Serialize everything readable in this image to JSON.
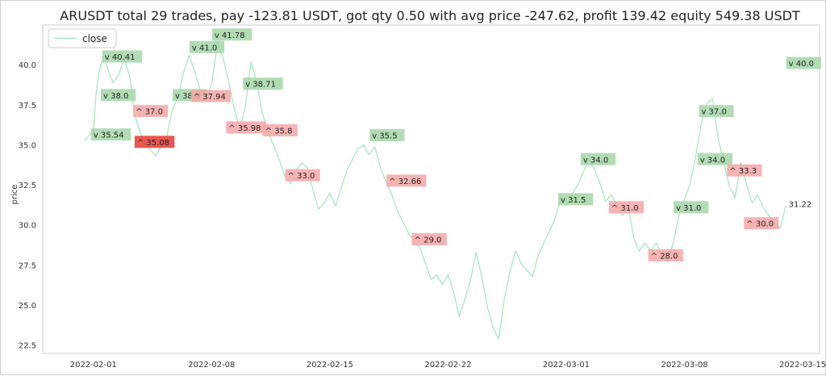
{
  "chart_data": {
    "type": "line",
    "title": "ARUSDT total 29 trades, pay -123.81 USDT, got qty 0.50 with avg price -247.62, profit 139.42 equity 549.38 USDT",
    "xlabel": "",
    "ylabel": "price",
    "ylim": [
      22,
      42.5
    ],
    "xlim": [
      "2022-01-29",
      "2022-03-16"
    ],
    "x_ticks": [
      "2022-02-01",
      "2022-02-08",
      "2022-02-15",
      "2022-02-22",
      "2022-03-01",
      "2022-03-08",
      "2022-03-15"
    ],
    "y_ticks": [
      22.5,
      25.0,
      27.5,
      30.0,
      32.5,
      35.0,
      37.5,
      40.0
    ],
    "grid": false,
    "legend": {
      "placement": "top-left",
      "entries": [
        "close"
      ]
    },
    "line_color": "#a8e6c2",
    "series": [
      {
        "name": "close",
        "points": [
          [
            "2022-01-31 12:00",
            35.3
          ],
          [
            "2022-02-01 00:00",
            35.9
          ],
          [
            "2022-02-01 04:00",
            38.3
          ],
          [
            "2022-02-01 08:00",
            39.6
          ],
          [
            "2022-02-01 14:00",
            40.5
          ],
          [
            "2022-02-01 20:00",
            39.8
          ],
          [
            "2022-02-02 04:00",
            38.9
          ],
          [
            "2022-02-02 12:00",
            39.4
          ],
          [
            "2022-02-02 20:00",
            40.4
          ],
          [
            "2022-02-03 04:00",
            39.2
          ],
          [
            "2022-02-03 10:00",
            37.0
          ],
          [
            "2022-02-03 16:00",
            36.1
          ],
          [
            "2022-02-04 00:00",
            35.2
          ],
          [
            "2022-02-04 08:00",
            34.8
          ],
          [
            "2022-02-04 16:00",
            34.3
          ],
          [
            "2022-02-05 00:00",
            34.9
          ],
          [
            "2022-02-05 08:00",
            35.5
          ],
          [
            "2022-02-05 16:00",
            37.2
          ],
          [
            "2022-02-06 00:00",
            38.0
          ],
          [
            "2022-02-06 08:00",
            39.5
          ],
          [
            "2022-02-06 16:00",
            40.6
          ],
          [
            "2022-02-07 00:00",
            39.6
          ],
          [
            "2022-02-07 08:00",
            38.4
          ],
          [
            "2022-02-07 16:00",
            37.9
          ],
          [
            "2022-02-08 00:00",
            38.8
          ],
          [
            "2022-02-08 08:00",
            41.3
          ],
          [
            "2022-02-08 16:00",
            40.5
          ],
          [
            "2022-02-09 00:00",
            39.0
          ],
          [
            "2022-02-09 08:00",
            37.3
          ],
          [
            "2022-02-09 16:00",
            36.0
          ],
          [
            "2022-02-10 00:00",
            37.4
          ],
          [
            "2022-02-10 08:00",
            40.2
          ],
          [
            "2022-02-10 16:00",
            38.9
          ],
          [
            "2022-02-11 00:00",
            37.0
          ],
          [
            "2022-02-11 08:00",
            35.9
          ],
          [
            "2022-02-11 16:00",
            35.0
          ],
          [
            "2022-02-12 00:00",
            34.1
          ],
          [
            "2022-02-12 08:00",
            33.1
          ],
          [
            "2022-02-12 16:00",
            32.6
          ],
          [
            "2022-02-13 00:00",
            33.4
          ],
          [
            "2022-02-13 08:00",
            33.9
          ],
          [
            "2022-02-13 16:00",
            33.6
          ],
          [
            "2022-02-14 00:00",
            32.2
          ],
          [
            "2022-02-14 08:00",
            31.0
          ],
          [
            "2022-02-14 16:00",
            31.4
          ],
          [
            "2022-02-15 00:00",
            32.0
          ],
          [
            "2022-02-15 08:00",
            31.2
          ],
          [
            "2022-02-15 16:00",
            32.3
          ],
          [
            "2022-02-16 00:00",
            33.4
          ],
          [
            "2022-02-16 08:00",
            34.1
          ],
          [
            "2022-02-16 16:00",
            34.8
          ],
          [
            "2022-02-17 00:00",
            35.0
          ],
          [
            "2022-02-17 08:00",
            34.4
          ],
          [
            "2022-02-17 16:00",
            34.9
          ],
          [
            "2022-02-18 00:00",
            33.6
          ],
          [
            "2022-02-18 08:00",
            32.7
          ],
          [
            "2022-02-18 16:00",
            31.9
          ],
          [
            "2022-02-19 00:00",
            30.9
          ],
          [
            "2022-02-19 08:00",
            30.2
          ],
          [
            "2022-02-19 16:00",
            29.5
          ],
          [
            "2022-02-20 00:00",
            29.0
          ],
          [
            "2022-02-20 08:00",
            28.6
          ],
          [
            "2022-02-20 16:00",
            27.6
          ],
          [
            "2022-02-21 00:00",
            26.6
          ],
          [
            "2022-02-21 08:00",
            26.9
          ],
          [
            "2022-02-21 16:00",
            26.3
          ],
          [
            "2022-02-22 00:00",
            26.9
          ],
          [
            "2022-02-22 08:00",
            25.8
          ],
          [
            "2022-02-22 16:00",
            24.3
          ],
          [
            "2022-02-23 00:00",
            25.4
          ],
          [
            "2022-02-23 08:00",
            26.6
          ],
          [
            "2022-02-23 16:00",
            28.3
          ],
          [
            "2022-02-24 00:00",
            26.8
          ],
          [
            "2022-02-24 08:00",
            24.9
          ],
          [
            "2022-02-24 16:00",
            23.6
          ],
          [
            "2022-02-25 00:00",
            22.9
          ],
          [
            "2022-02-25 08:00",
            25.4
          ],
          [
            "2022-02-25 16:00",
            27.1
          ],
          [
            "2022-02-26 00:00",
            28.4
          ],
          [
            "2022-02-26 08:00",
            27.6
          ],
          [
            "2022-02-26 16:00",
            27.2
          ],
          [
            "2022-02-27 00:00",
            26.8
          ],
          [
            "2022-02-27 08:00",
            28.1
          ],
          [
            "2022-02-27 16:00",
            28.9
          ],
          [
            "2022-02-28 00:00",
            29.6
          ],
          [
            "2022-02-28 08:00",
            30.4
          ],
          [
            "2022-02-28 16:00",
            31.6
          ],
          [
            "2022-03-01 00:00",
            31.2
          ],
          [
            "2022-03-01 08:00",
            31.9
          ],
          [
            "2022-03-01 16:00",
            32.5
          ],
          [
            "2022-03-02 00:00",
            33.3
          ],
          [
            "2022-03-02 08:00",
            34.1
          ],
          [
            "2022-03-02 16:00",
            33.5
          ],
          [
            "2022-03-03 00:00",
            32.6
          ],
          [
            "2022-03-03 08:00",
            31.5
          ],
          [
            "2022-03-03 16:00",
            31.9
          ],
          [
            "2022-03-04 00:00",
            31.2
          ],
          [
            "2022-03-04 08:00",
            30.6
          ],
          [
            "2022-03-04 16:00",
            31.2
          ],
          [
            "2022-03-05 00:00",
            29.2
          ],
          [
            "2022-03-05 08:00",
            28.4
          ],
          [
            "2022-03-05 16:00",
            28.9
          ],
          [
            "2022-03-06 00:00",
            28.4
          ],
          [
            "2022-03-06 08:00",
            28.9
          ],
          [
            "2022-03-06 16:00",
            28.1
          ],
          [
            "2022-03-07 00:00",
            27.7
          ],
          [
            "2022-03-07 08:00",
            28.9
          ],
          [
            "2022-03-07 16:00",
            30.6
          ],
          [
            "2022-03-08 00:00",
            31.6
          ],
          [
            "2022-03-08 08:00",
            32.6
          ],
          [
            "2022-03-08 16:00",
            34.3
          ],
          [
            "2022-03-09 00:00",
            36.4
          ],
          [
            "2022-03-09 08:00",
            37.6
          ],
          [
            "2022-03-09 16:00",
            37.9
          ],
          [
            "2022-03-10 00:00",
            35.4
          ],
          [
            "2022-03-10 08:00",
            33.9
          ],
          [
            "2022-03-10 16:00",
            32.4
          ],
          [
            "2022-03-11 00:00",
            31.7
          ],
          [
            "2022-03-11 08:00",
            33.9
          ],
          [
            "2022-03-11 16:00",
            32.6
          ],
          [
            "2022-03-12 00:00",
            31.4
          ],
          [
            "2022-03-12 08:00",
            31.9
          ],
          [
            "2022-03-12 16:00",
            31.1
          ],
          [
            "2022-03-13 00:00",
            30.6
          ],
          [
            "2022-03-13 08:00",
            30.2
          ],
          [
            "2022-03-13 16:00",
            29.8
          ],
          [
            "2022-03-14 00:00",
            31.22
          ]
        ]
      }
    ],
    "annotations": [
      {
        "text": "v 35.54",
        "x": "2022-02-01 00:00",
        "y": 35.54,
        "kind": "sell"
      },
      {
        "text": "v 40.41",
        "x": "2022-02-01 16:00",
        "y": 40.41,
        "kind": "sell"
      },
      {
        "text": "v 38.0",
        "x": "2022-02-01 14:00",
        "y": 38.0,
        "kind": "sell"
      },
      {
        "text": "^ 37.0",
        "x": "2022-02-03 12:00",
        "y": 37.0,
        "kind": "buy"
      },
      {
        "text": "^ 35.08",
        "x": "2022-02-03 14:00",
        "y": 35.08,
        "kind": "buy-strong"
      },
      {
        "text": "v 38.0",
        "x": "2022-02-05 20:00",
        "y": 38.0,
        "kind": "sell"
      },
      {
        "text": "^ 37.94",
        "x": "2022-02-06 22:00",
        "y": 37.94,
        "kind": "buy"
      },
      {
        "text": "v 41.0",
        "x": "2022-02-06 20:00",
        "y": 41.0,
        "kind": "sell"
      },
      {
        "text": "v 41.78",
        "x": "2022-02-08 04:00",
        "y": 41.78,
        "kind": "sell"
      },
      {
        "text": "^ 35.98",
        "x": "2022-02-09 00:00",
        "y": 35.98,
        "kind": "buy"
      },
      {
        "text": "v 38.71",
        "x": "2022-02-10 00:00",
        "y": 38.71,
        "kind": "sell"
      },
      {
        "text": "^ 35.8",
        "x": "2022-02-11 04:00",
        "y": 35.8,
        "kind": "buy"
      },
      {
        "text": "^ 33.0",
        "x": "2022-02-12 12:00",
        "y": 33.0,
        "kind": "buy"
      },
      {
        "text": "v 35.5",
        "x": "2022-02-17 12:00",
        "y": 35.5,
        "kind": "sell"
      },
      {
        "text": "^ 32.66",
        "x": "2022-02-18 12:00",
        "y": 32.66,
        "kind": "buy"
      },
      {
        "text": "^ 29.0",
        "x": "2022-02-20 00:00",
        "y": 29.0,
        "kind": "buy"
      },
      {
        "text": "v 31.5",
        "x": "2022-02-28 16:00",
        "y": 31.5,
        "kind": "sell"
      },
      {
        "text": "v 34.0",
        "x": "2022-03-02 00:00",
        "y": 34.0,
        "kind": "sell"
      },
      {
        "text": "^ 31.0",
        "x": "2022-03-03 16:00",
        "y": 31.0,
        "kind": "buy"
      },
      {
        "text": "^ 28.0",
        "x": "2022-03-06 00:00",
        "y": 28.0,
        "kind": "buy"
      },
      {
        "text": "v 31.0",
        "x": "2022-03-07 12:00",
        "y": 31.0,
        "kind": "sell"
      },
      {
        "text": "v 37.0",
        "x": "2022-03-09 00:00",
        "y": 37.0,
        "kind": "sell"
      },
      {
        "text": "v 34.0",
        "x": "2022-03-08 22:00",
        "y": 34.0,
        "kind": "sell"
      },
      {
        "text": "^ 33.3",
        "x": "2022-03-10 16:00",
        "y": 33.3,
        "kind": "buy"
      },
      {
        "text": "^ 30.0",
        "x": "2022-03-11 16:00",
        "y": 30.0,
        "kind": "buy"
      },
      {
        "text": "v 40.0",
        "x": "2022-03-14 04:00",
        "y": 40.0,
        "kind": "sell"
      },
      {
        "text": "31.22",
        "x": "2022-03-14 04:00",
        "y": 31.22,
        "kind": "last"
      }
    ],
    "colors": {
      "sell": "#a5d6a7",
      "buy": "#f4a6a6",
      "buy-strong": "#e53935"
    }
  }
}
